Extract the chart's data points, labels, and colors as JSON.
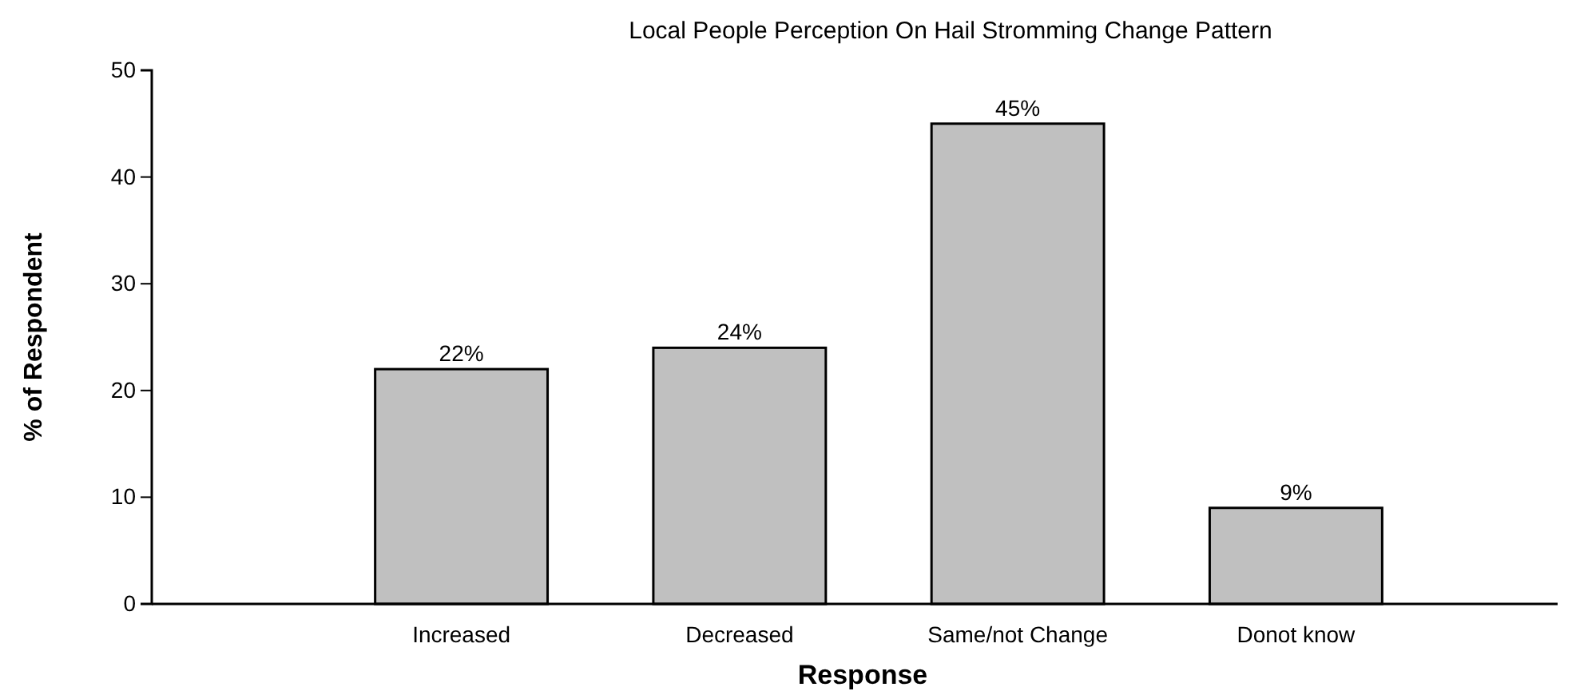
{
  "chart_data": {
    "type": "bar",
    "title": "Local People Perception On Hail Stromming Change Pattern",
    "xlabel": "Response",
    "ylabel": "% of Respondent",
    "categories": [
      "Increased",
      "Decreased",
      "Same/not Change",
      "Donot know"
    ],
    "values": [
      22,
      24,
      45,
      9
    ],
    "value_labels": [
      "22%",
      "24%",
      "45%",
      "9%"
    ],
    "color": "#c0c0c0",
    "ylim": [
      0,
      50
    ],
    "yticks": [
      0,
      10,
      20,
      30,
      40,
      50
    ],
    "grid": false
  }
}
